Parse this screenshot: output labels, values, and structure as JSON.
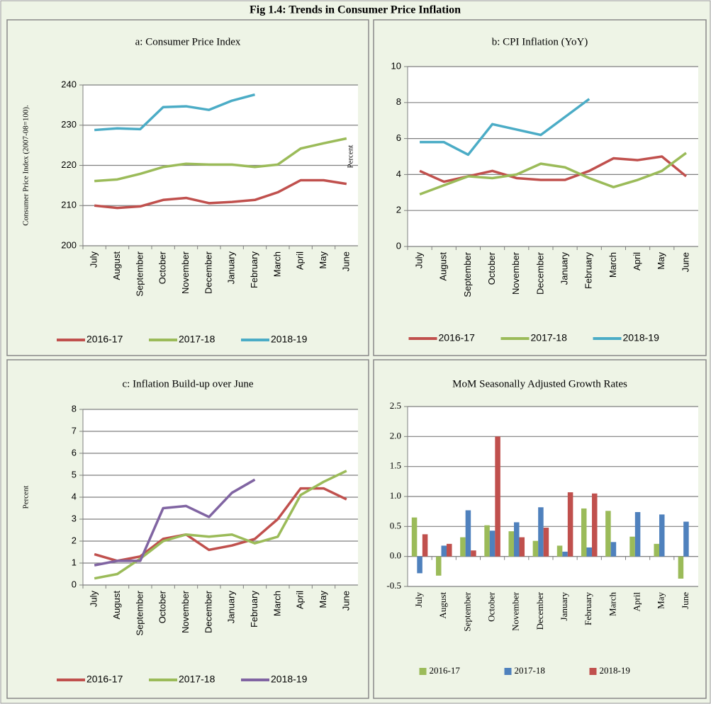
{
  "title": "Fig 1.4: Trends in Consumer Price Inflation",
  "chart_data": [
    {
      "type": "line",
      "title": "a: Consumer Price Index",
      "ylabel": "Consumer Price Index (2007-08=100).",
      "categories": [
        "July",
        "August",
        "September",
        "October",
        "November",
        "December",
        "January",
        "February",
        "March",
        "April",
        "May",
        "June"
      ],
      "ylim": [
        200,
        240
      ],
      "yticks": [
        200,
        210,
        220,
        230,
        240
      ],
      "grid": true,
      "series": [
        {
          "name": "2016-17",
          "color": "#c0504d",
          "values": [
            210,
            209.4,
            209.8,
            211.4,
            211.9,
            210.6,
            210.9,
            211.4,
            213.3,
            216.3,
            216.3,
            215.4
          ]
        },
        {
          "name": "2017-18",
          "color": "#9bbb59",
          "values": [
            216.1,
            216.5,
            217.9,
            219.6,
            220.4,
            220.2,
            220.2,
            219.6,
            220.2,
            224.2,
            225.5,
            226.7
          ]
        },
        {
          "name": "2018-19",
          "color": "#4bacc6",
          "values": [
            228.8,
            229.2,
            229,
            234.5,
            234.7,
            233.8,
            236.1,
            237.6,
            null,
            null,
            null,
            null
          ]
        }
      ]
    },
    {
      "type": "line",
      "title": "b: CPI Inflation (YoY)",
      "ylabel": "Percent",
      "categories": [
        "July",
        "August",
        "September",
        "October",
        "November",
        "December",
        "January",
        "February",
        "March",
        "April",
        "May",
        "June"
      ],
      "ylim": [
        0,
        10
      ],
      "yticks": [
        0,
        2,
        4,
        6,
        8,
        10
      ],
      "grid": true,
      "series": [
        {
          "name": "2016-17",
          "color": "#c0504d",
          "values": [
            4.2,
            3.6,
            3.9,
            4.2,
            3.8,
            3.7,
            3.7,
            4.2,
            4.9,
            4.8,
            5.0,
            3.9
          ]
        },
        {
          "name": "2017-18",
          "color": "#9bbb59",
          "values": [
            2.9,
            3.4,
            3.9,
            3.8,
            4.0,
            4.6,
            4.4,
            3.8,
            3.3,
            3.7,
            4.2,
            5.2
          ]
        },
        {
          "name": "2018-19",
          "color": "#4bacc6",
          "values": [
            5.8,
            5.8,
            5.1,
            6.8,
            6.5,
            6.2,
            7.2,
            8.2,
            null,
            null,
            null,
            null
          ]
        }
      ]
    },
    {
      "type": "line",
      "title": "c: Inflation Build-up over June",
      "ylabel": "Percent",
      "categories": [
        "July",
        "August",
        "September",
        "October",
        "November",
        "December",
        "January",
        "February",
        "March",
        "April",
        "May",
        "June"
      ],
      "ylim": [
        0,
        8
      ],
      "yticks": [
        0,
        1,
        2,
        3,
        4,
        5,
        6,
        7,
        8
      ],
      "grid": true,
      "series": [
        {
          "name": "2016-17",
          "color": "#c0504d",
          "values": [
            1.4,
            1.1,
            1.3,
            2.1,
            2.3,
            1.6,
            1.8,
            2.1,
            3.0,
            4.4,
            4.4,
            3.9
          ]
        },
        {
          "name": "2017-18",
          "color": "#9bbb59",
          "values": [
            0.3,
            0.5,
            1.2,
            2.0,
            2.3,
            2.2,
            2.3,
            1.9,
            2.2,
            4.1,
            4.7,
            5.2
          ]
        },
        {
          "name": "2018-19",
          "color": "#8064a2",
          "values": [
            0.9,
            1.1,
            1.1,
            3.5,
            3.6,
            3.1,
            4.2,
            4.8,
            null,
            null,
            null,
            null
          ]
        }
      ]
    },
    {
      "type": "bar",
      "title": "MoM Seasonally Adjusted Growth Rates",
      "categories": [
        "July",
        "August",
        "September",
        "October",
        "November",
        "December",
        "January",
        "February",
        "March",
        "April",
        "May",
        "June"
      ],
      "ylim": [
        -0.5,
        2.5
      ],
      "yticks": [
        -0.5,
        {
          "value": 0,
          "label": "0.0"
        },
        0.5,
        {
          "value": 1,
          "label": "1.0"
        },
        1.5,
        {
          "value": 2,
          "label": "2.0"
        },
        2.5
      ],
      "grid": true,
      "series": [
        {
          "name": "2016-17",
          "color": "#9bbb59",
          "values": [
            0.65,
            -0.32,
            0.32,
            0.52,
            0.42,
            0.26,
            0.18,
            0.8,
            0.76,
            0.33,
            0.21,
            -0.37
          ]
        },
        {
          "name": "2017-18",
          "color": "#4f81bd",
          "values": [
            -0.28,
            0.18,
            0.77,
            0.43,
            0.57,
            0.82,
            0.08,
            0.15,
            0.24,
            0.74,
            0.7,
            0.58
          ]
        },
        {
          "name": "2018-19",
          "color": "#c0504d",
          "values": [
            0.37,
            0.21,
            0.1,
            2.0,
            0.32,
            0.48,
            1.07,
            1.05,
            null,
            null,
            null,
            null
          ]
        }
      ]
    }
  ]
}
